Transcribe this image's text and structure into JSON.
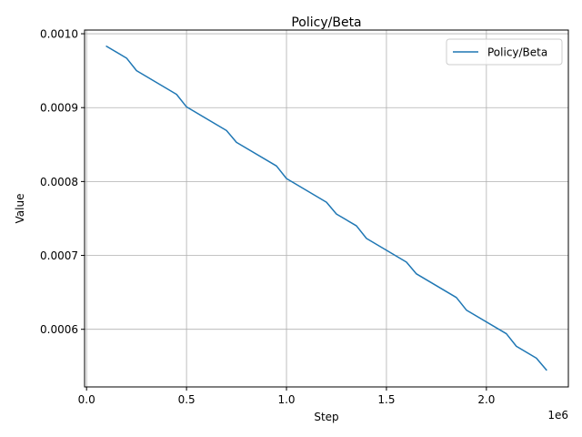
{
  "chart_data": {
    "type": "line",
    "title": "Policy/Beta",
    "xlabel": "Step",
    "ylabel": "Value",
    "x_offset_label": "1e6",
    "xlim": [
      -10000,
      2410000
    ],
    "ylim": [
      0.000522,
      0.001005
    ],
    "x_ticks": [
      {
        "value": 0,
        "label": "0.0"
      },
      {
        "value": 500000,
        "label": "0.5"
      },
      {
        "value": 1000000,
        "label": "1.0"
      },
      {
        "value": 1500000,
        "label": "1.5"
      },
      {
        "value": 2000000,
        "label": "2.0"
      }
    ],
    "y_ticks": [
      {
        "value": 0.0006,
        "label": "0.0006"
      },
      {
        "value": 0.0007,
        "label": "0.0007"
      },
      {
        "value": 0.0008,
        "label": "0.0008"
      },
      {
        "value": 0.0009,
        "label": "0.0009"
      },
      {
        "value": 0.001,
        "label": "0.0010"
      }
    ],
    "grid": true,
    "legend_position": "top-right",
    "series": [
      {
        "name": "Policy/Beta",
        "color": "#1f77b4",
        "x": [
          100000,
          200000,
          250000,
          450000,
          500000,
          700000,
          750000,
          950000,
          1000000,
          1200000,
          1250000,
          1350000,
          1400000,
          1600000,
          1650000,
          1850000,
          1900000,
          2100000,
          2150000,
          2250000,
          2300000
        ],
        "y": [
          0.000983,
          0.000967,
          0.00095,
          0.000918,
          0.000901,
          0.000869,
          0.000853,
          0.000821,
          0.000804,
          0.000772,
          0.000756,
          0.00074,
          0.000723,
          0.000691,
          0.000675,
          0.000643,
          0.000626,
          0.000594,
          0.000577,
          0.000561,
          0.000545
        ]
      }
    ]
  }
}
